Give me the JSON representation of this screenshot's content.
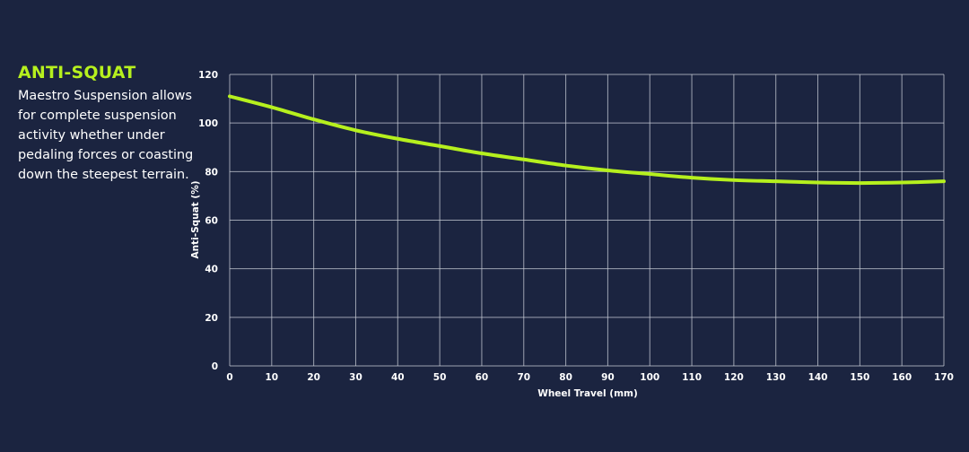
{
  "heading": "ANTI-SQUAT",
  "description": "Maestro Suspension allows for complete suspension activity whether under pedaling forces or coasting down the steepest terrain.",
  "colors": {
    "background": "#1b2440",
    "accent": "#b6f01e",
    "grid": "#c8ccd6",
    "text": "#ffffff"
  },
  "chart_data": {
    "type": "line",
    "xlabel": "Wheel Travel (mm)",
    "ylabel": "Anti-Squat (%)",
    "xlim": [
      0,
      170
    ],
    "ylim": [
      0,
      120
    ],
    "xticks": [
      0,
      10,
      20,
      30,
      40,
      50,
      60,
      70,
      80,
      90,
      100,
      110,
      120,
      130,
      140,
      150,
      160,
      170
    ],
    "yticks": [
      0,
      20,
      40,
      60,
      80,
      100,
      120
    ],
    "grid": true,
    "series": [
      {
        "color": "#b6f01e",
        "x": [
          0,
          10,
          20,
          30,
          40,
          50,
          60,
          70,
          80,
          90,
          100,
          110,
          120,
          130,
          140,
          150,
          160,
          170
        ],
        "y": [
          111,
          106.5,
          101.5,
          97,
          93.5,
          90.5,
          87.5,
          85,
          82.5,
          80.5,
          79,
          77.5,
          76.5,
          76,
          75.5,
          75.3,
          75.5,
          76
        ]
      }
    ]
  }
}
